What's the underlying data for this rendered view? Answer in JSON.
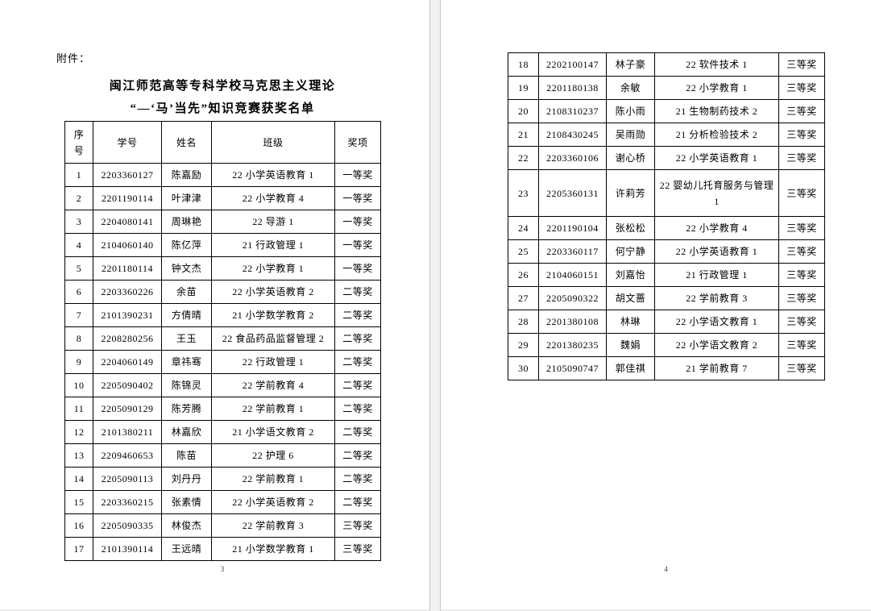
{
  "document": {
    "attachment_label": "附件：",
    "title_line1": "闽江师范高等专科学校马克思主义理论",
    "title_line2": "“—‘马’当先”知识竞赛获奖名单",
    "left_page_number": "3",
    "right_page_number": "4"
  },
  "table": {
    "headers": {
      "index_line1": "序",
      "index_line2": "号",
      "student_id": "学号",
      "name": "姓名",
      "class": "班级",
      "award": "奖项"
    },
    "left_rows": [
      [
        "1",
        "2203360127",
        "陈嘉励",
        "22 小学英语教育 1",
        "一等奖"
      ],
      [
        "2",
        "2201190114",
        "叶津津",
        "22 小学教育 4",
        "一等奖"
      ],
      [
        "3",
        "2204080141",
        "周琳艳",
        "22 导游 1",
        "一等奖"
      ],
      [
        "4",
        "2104060140",
        "陈亿萍",
        "21 行政管理 1",
        "一等奖"
      ],
      [
        "5",
        "2201180114",
        "钟文杰",
        "22 小学教育 1",
        "一等奖"
      ],
      [
        "6",
        "2203360226",
        "余苗",
        "22 小学英语教育 2",
        "二等奖"
      ],
      [
        "7",
        "2101390231",
        "方倩晴",
        "21 小学数学教育 2",
        "二等奖"
      ],
      [
        "8",
        "2208280256",
        "王玉",
        "22 食品药品监督管理 2",
        "二等奖"
      ],
      [
        "9",
        "2204060149",
        "章祎骞",
        "22 行政管理 1",
        "二等奖"
      ],
      [
        "10",
        "2205090402",
        "陈锦灵",
        "22 学前教育 4",
        "二等奖"
      ],
      [
        "11",
        "2205090129",
        "陈芳腾",
        "22 学前教育 1",
        "二等奖"
      ],
      [
        "12",
        "2101380211",
        "林嘉欣",
        "21 小学语文教育 2",
        "二等奖"
      ],
      [
        "13",
        "2209460653",
        "陈苗",
        "22 护理 6",
        "二等奖"
      ],
      [
        "14",
        "2205090113",
        "刘丹丹",
        "22 学前教育 1",
        "二等奖"
      ],
      [
        "15",
        "2203360215",
        "张素情",
        "22 小学英语教育 2",
        "二等奖"
      ],
      [
        "16",
        "2205090335",
        "林俊杰",
        "22 学前教育 3",
        "三等奖"
      ],
      [
        "17",
        "2101390114",
        "王远晴",
        "21 小学数学教育 1",
        "三等奖"
      ]
    ],
    "right_rows": [
      [
        "18",
        "2202100147",
        "林子豪",
        "22 软件技术 1",
        "三等奖"
      ],
      [
        "19",
        "2201180138",
        "余敏",
        "22 小学教育 1",
        "三等奖"
      ],
      [
        "20",
        "2108310237",
        "陈小雨",
        "21 生物制药技术 2",
        "三等奖"
      ],
      [
        "21",
        "2108430245",
        "吴雨勋",
        "21 分析检验技术 2",
        "三等奖"
      ],
      [
        "22",
        "2203360106",
        "谢心桥",
        "22 小学英语教育 1",
        "三等奖"
      ],
      [
        "23",
        "2205360131",
        "许莉芳",
        "22 婴幼儿托育服务与管理 1",
        "三等奖"
      ],
      [
        "24",
        "2201190104",
        "张松松",
        "22 小学教育 4",
        "三等奖"
      ],
      [
        "25",
        "2203360117",
        "何宁静",
        "22 小学英语教育 1",
        "三等奖"
      ],
      [
        "26",
        "2104060151",
        "刘嘉怡",
        "21 行政管理 1",
        "三等奖"
      ],
      [
        "27",
        "2205090322",
        "胡文蔷",
        "22 学前教育 3",
        "三等奖"
      ],
      [
        "28",
        "2201380108",
        "林琳",
        "22 小学语文教育 1",
        "三等奖"
      ],
      [
        "29",
        "2201380235",
        "魏娟",
        "22 小学语文教育 2",
        "三等奖"
      ],
      [
        "30",
        "2105090747",
        "郭佳祺",
        "21 学前教育 7",
        "三等奖"
      ]
    ]
  }
}
